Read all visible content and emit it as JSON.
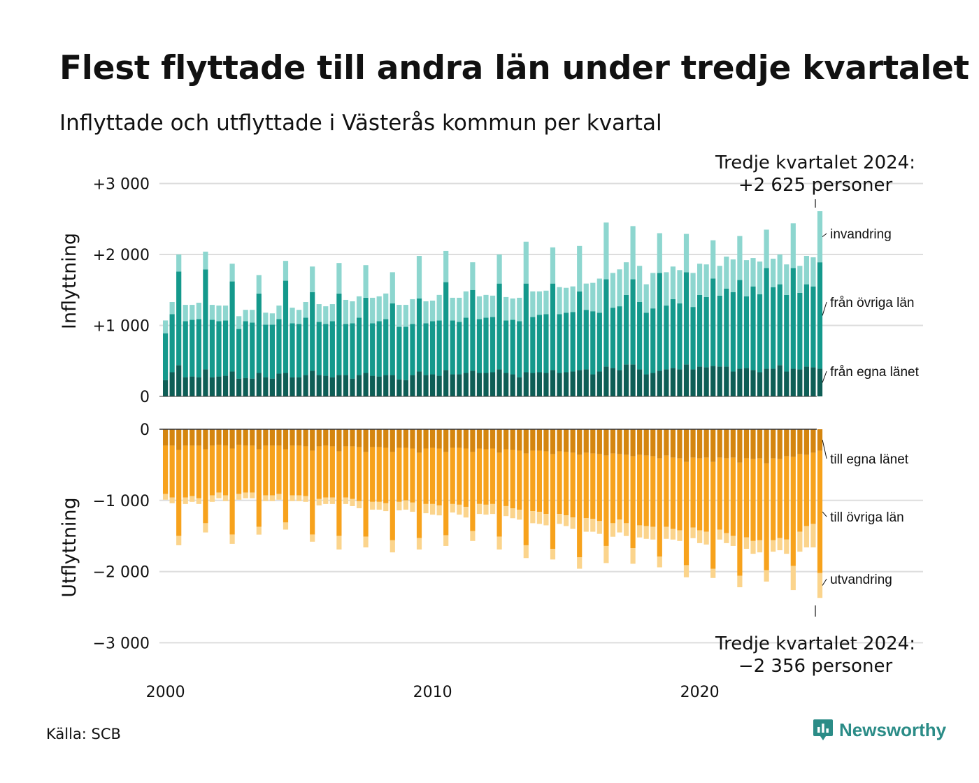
{
  "title": "Flest flyttade till andra län under tredje kvartalet",
  "subtitle": "Inflyttade och utflyttade i Västerås kommun per kvartal",
  "source": "Källa: SCB",
  "brand": "Newsworthy",
  "annotations": {
    "top": [
      "Tredje kvartalet 2024:",
      "+2 625 personer"
    ],
    "bottom": [
      "Tredje kvartalet 2024:",
      "−2 356 personer"
    ]
  },
  "colors": {
    "in_own": "#0e5e56",
    "in_other": "#14998c",
    "in_immigration": "#8dd6cf",
    "out_own": "#d4850f",
    "out_other": "#f7a21c",
    "out_emigration": "#fbd48c",
    "grid": "#dddddd",
    "brand": "#2b8c87"
  },
  "chart_data": [
    {
      "type": "bar",
      "stacked": true,
      "title": "",
      "ylabel": "Inflyttning",
      "ylim": [
        0,
        3000
      ],
      "yticks": [
        0,
        1000,
        2000,
        3000
      ],
      "ytick_labels": [
        "0",
        "+1 000",
        "+2 000",
        "+3 000"
      ],
      "xlabel": "",
      "x_tick_labels": [
        "2000",
        "2010",
        "2020"
      ],
      "x_period": "Q1 2000 – Q3 2024, kvartal",
      "categories": [
        "2000 Q1",
        "2000 Q2",
        "2000 Q3",
        "2000 Q4",
        "2001 Q1",
        "2001 Q2",
        "2001 Q3",
        "2001 Q4",
        "2002 Q1",
        "2002 Q2",
        "2002 Q3",
        "2002 Q4",
        "2003 Q1",
        "2003 Q2",
        "2003 Q3",
        "2003 Q4",
        "2004 Q1",
        "2004 Q2",
        "2004 Q3",
        "2004 Q4",
        "2005 Q1",
        "2005 Q2",
        "2005 Q3",
        "2005 Q4",
        "2006 Q1",
        "2006 Q2",
        "2006 Q3",
        "2006 Q4",
        "2007 Q1",
        "2007 Q2",
        "2007 Q3",
        "2007 Q4",
        "2008 Q1",
        "2008 Q2",
        "2008 Q3",
        "2008 Q4",
        "2009 Q1",
        "2009 Q2",
        "2009 Q3",
        "2009 Q4",
        "2010 Q1",
        "2010 Q2",
        "2010 Q3",
        "2010 Q4",
        "2011 Q1",
        "2011 Q2",
        "2011 Q3",
        "2011 Q4",
        "2012 Q1",
        "2012 Q2",
        "2012 Q3",
        "2012 Q4",
        "2013 Q1",
        "2013 Q2",
        "2013 Q3",
        "2013 Q4",
        "2014 Q1",
        "2014 Q2",
        "2014 Q3",
        "2014 Q4",
        "2015 Q1",
        "2015 Q2",
        "2015 Q3",
        "2015 Q4",
        "2016 Q1",
        "2016 Q2",
        "2016 Q3",
        "2016 Q4",
        "2017 Q1",
        "2017 Q2",
        "2017 Q3",
        "2017 Q4",
        "2018 Q1",
        "2018 Q2",
        "2018 Q3",
        "2018 Q4",
        "2019 Q1",
        "2019 Q2",
        "2019 Q3",
        "2019 Q4",
        "2020 Q1",
        "2020 Q2",
        "2020 Q3",
        "2020 Q4",
        "2021 Q1",
        "2021 Q2",
        "2021 Q3",
        "2021 Q4",
        "2022 Q1",
        "2022 Q2",
        "2022 Q3",
        "2022 Q4",
        "2023 Q1",
        "2023 Q2",
        "2023 Q3",
        "2023 Q4",
        "2024 Q1",
        "2024 Q2",
        "2024 Q3"
      ],
      "series": [
        {
          "name": "från egna länet",
          "color_key": "in_own",
          "values": [
            230,
            340,
            440,
            270,
            280,
            270,
            380,
            270,
            280,
            290,
            350,
            250,
            260,
            250,
            330,
            270,
            250,
            320,
            330,
            270,
            270,
            300,
            360,
            300,
            290,
            270,
            300,
            300,
            250,
            300,
            330,
            290,
            280,
            300,
            300,
            240,
            230,
            300,
            350,
            300,
            310,
            290,
            370,
            310,
            310,
            330,
            360,
            330,
            330,
            340,
            380,
            330,
            310,
            270,
            340,
            330,
            340,
            330,
            370,
            330,
            340,
            350,
            370,
            380,
            310,
            350,
            420,
            400,
            370,
            450,
            450,
            380,
            310,
            330,
            360,
            380,
            400,
            380,
            450,
            380,
            420,
            410,
            430,
            420,
            420,
            350,
            390,
            400,
            370,
            340,
            390,
            390,
            440,
            350,
            390,
            380,
            420,
            410,
            390
          ]
        },
        {
          "name": "från övriga län",
          "color_key": "in_other",
          "values": [
            660,
            820,
            1320,
            790,
            800,
            820,
            1410,
            810,
            780,
            780,
            1270,
            700,
            800,
            790,
            1120,
            740,
            760,
            770,
            1300,
            760,
            750,
            810,
            1110,
            750,
            730,
            790,
            1150,
            720,
            780,
            810,
            1060,
            740,
            780,
            790,
            1010,
            740,
            750,
            720,
            1030,
            730,
            750,
            780,
            1240,
            760,
            740,
            780,
            1140,
            760,
            780,
            780,
            1210,
            740,
            770,
            790,
            1250,
            790,
            810,
            830,
            1220,
            830,
            840,
            840,
            1110,
            840,
            890,
            830,
            1230,
            850,
            900,
            980,
            1200,
            950,
            870,
            910,
            1380,
            900,
            970,
            930,
            1300,
            880,
            1010,
            990,
            1230,
            1000,
            1100,
            1120,
            1250,
            1010,
            1180,
            1100,
            1420,
            1150,
            1140,
            1080,
            1420,
            1080,
            1160,
            1140,
            1500
          ]
        },
        {
          "name": "invandring",
          "color_key": "in_immigration",
          "values": [
            180,
            170,
            240,
            230,
            210,
            230,
            250,
            210,
            220,
            210,
            250,
            180,
            160,
            180,
            260,
            170,
            160,
            190,
            280,
            220,
            200,
            220,
            360,
            250,
            250,
            240,
            430,
            340,
            310,
            300,
            460,
            360,
            350,
            360,
            440,
            310,
            310,
            350,
            600,
            310,
            290,
            360,
            440,
            320,
            340,
            370,
            390,
            320,
            320,
            300,
            410,
            330,
            300,
            330,
            590,
            360,
            330,
            330,
            510,
            380,
            350,
            360,
            640,
            370,
            400,
            480,
            800,
            490,
            520,
            460,
            750,
            510,
            400,
            500,
            560,
            470,
            460,
            470,
            540,
            480,
            440,
            460,
            540,
            420,
            450,
            460,
            620,
            510,
            400,
            460,
            540,
            400,
            420,
            430,
            630,
            380,
            400,
            410,
            720
          ]
        }
      ]
    },
    {
      "type": "bar",
      "stacked": true,
      "title": "",
      "ylabel": "Utflyttning",
      "ylim": [
        -3000,
        0
      ],
      "yticks": [
        0,
        -1000,
        -2000,
        -3000
      ],
      "ytick_labels": [
        "0",
        "−1 000",
        "−2 000",
        "−3 000"
      ],
      "xlabel": "",
      "x_tick_labels": [
        "2000",
        "2010",
        "2020"
      ],
      "x_period": "Q1 2000 – Q3 2024, kvartal",
      "series": [
        {
          "name": "till egna länet",
          "color_key": "out_own",
          "values": [
            -230,
            -230,
            -290,
            -230,
            -230,
            -230,
            -280,
            -230,
            -220,
            -230,
            -270,
            -220,
            -230,
            -230,
            -280,
            -230,
            -230,
            -230,
            -280,
            -230,
            -230,
            -240,
            -300,
            -240,
            -230,
            -240,
            -310,
            -240,
            -240,
            -250,
            -320,
            -250,
            -250,
            -260,
            -320,
            -260,
            -260,
            -270,
            -330,
            -270,
            -260,
            -270,
            -320,
            -260,
            -260,
            -270,
            -320,
            -270,
            -280,
            -270,
            -330,
            -280,
            -290,
            -300,
            -340,
            -300,
            -300,
            -310,
            -350,
            -310,
            -320,
            -330,
            -360,
            -330,
            -340,
            -350,
            -370,
            -340,
            -350,
            -360,
            -380,
            -360,
            -370,
            -380,
            -410,
            -370,
            -400,
            -410,
            -460,
            -400,
            -410,
            -400,
            -460,
            -400,
            -410,
            -400,
            -470,
            -410,
            -420,
            -410,
            -480,
            -410,
            -420,
            -380,
            -390,
            -350,
            -360,
            -330,
            -300
          ]
        },
        {
          "name": "till övriga län",
          "color_key": "out_other",
          "values": [
            -680,
            -730,
            -1210,
            -730,
            -710,
            -740,
            -1040,
            -700,
            -670,
            -700,
            -1210,
            -690,
            -660,
            -660,
            -1090,
            -700,
            -700,
            -680,
            -1030,
            -700,
            -700,
            -700,
            -1180,
            -740,
            -730,
            -720,
            -1190,
            -720,
            -740,
            -760,
            -1190,
            -770,
            -770,
            -780,
            -1240,
            -760,
            -740,
            -760,
            -1200,
            -780,
            -790,
            -800,
            -1170,
            -790,
            -800,
            -820,
            -1110,
            -780,
            -780,
            -780,
            -1180,
            -800,
            -820,
            -830,
            -1290,
            -850,
            -860,
            -880,
            -1330,
            -880,
            -890,
            -910,
            -1440,
            -920,
            -920,
            -940,
            -1270,
            -980,
            -920,
            -960,
            -1290,
            -990,
            -990,
            -990,
            -1380,
            -1000,
            -1000,
            -1010,
            -1450,
            -980,
            -1010,
            -1040,
            -1500,
            -1010,
            -1050,
            -1100,
            -1590,
            -1110,
            -1150,
            -1150,
            -1500,
            -1150,
            -1110,
            -1170,
            -1530,
            -1090,
            -1000,
            -1000,
            -1720
          ]
        },
        {
          "name": "utvandring",
          "color_key": "out_emigration",
          "values": [
            -80,
            -80,
            -130,
            -90,
            -80,
            -80,
            -130,
            -90,
            -80,
            -80,
            -130,
            -80,
            -80,
            -80,
            -110,
            -80,
            -80,
            -80,
            -100,
            -80,
            -80,
            -80,
            -100,
            -90,
            -90,
            -90,
            -190,
            -90,
            -100,
            -100,
            -150,
            -110,
            -110,
            -110,
            -170,
            -120,
            -130,
            -130,
            -160,
            -130,
            -150,
            -140,
            -150,
            -120,
            -140,
            -150,
            -140,
            -140,
            -140,
            -140,
            -180,
            -140,
            -140,
            -140,
            -180,
            -170,
            -170,
            -160,
            -150,
            -140,
            -150,
            -160,
            -160,
            -190,
            -180,
            -180,
            -240,
            -190,
            -180,
            -180,
            -220,
            -170,
            -180,
            -180,
            -150,
            -170,
            -150,
            -150,
            -170,
            -150,
            -180,
            -180,
            -130,
            -140,
            -140,
            -140,
            -160,
            -160,
            -180,
            -170,
            -160,
            -160,
            -170,
            -200,
            -340,
            -280,
            -300,
            -330,
            -350
          ]
        }
      ]
    }
  ],
  "series_labels": {
    "top": [
      "invandring",
      "från övriga län",
      "från egna länet"
    ],
    "bottom": [
      "till egna länet",
      "till övriga län",
      "utvandring"
    ]
  }
}
